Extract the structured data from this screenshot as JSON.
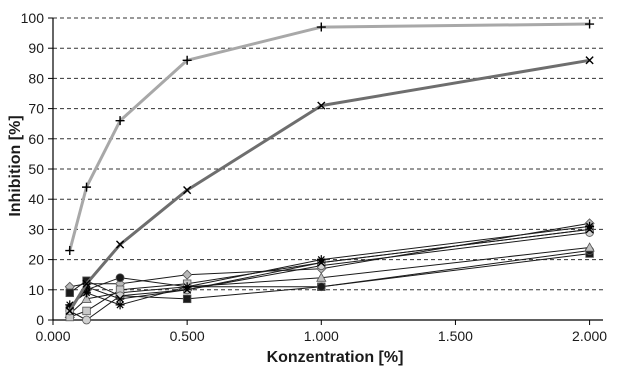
{
  "chart_data": {
    "type": "line",
    "title": "",
    "xlabel": "Konzentration [%]",
    "ylabel": "Inhibition [%]",
    "xlim": [
      0,
      2.05
    ],
    "ylim": [
      0,
      100
    ],
    "x_ticks": [
      0,
      0.5,
      1,
      1.5,
      2
    ],
    "x_tick_labels": [
      "0.000",
      "0.500",
      "1.000",
      "1.500",
      "2.000"
    ],
    "y_ticks": [
      0,
      10,
      20,
      30,
      40,
      50,
      60,
      70,
      80,
      90,
      100
    ],
    "y_tick_labels": [
      "0",
      "10",
      "20",
      "30",
      "40",
      "50",
      "60",
      "70",
      "80",
      "90",
      "100"
    ],
    "grid": "horizontal dashed",
    "legend": "none",
    "x": [
      0.0625,
      0.125,
      0.25,
      0.5,
      1.0,
      2.0
    ],
    "series": [
      {
        "values": [
          23,
          44,
          66,
          86,
          97,
          98
        ],
        "color": "#a8a8a8",
        "marker": "plus",
        "width": 3
      },
      {
        "values": [
          3,
          12,
          25,
          43,
          71,
          86
        ],
        "color": "#6e6e6e",
        "marker": "x",
        "width": 3
      },
      {
        "values": [
          11,
          12,
          12,
          15,
          17,
          32
        ],
        "color": "#1a1a1a",
        "marker": "diamond",
        "marker_fill": "#b8b8b8"
      },
      {
        "values": [
          9,
          13,
          8,
          7,
          11,
          22
        ],
        "color": "#1a1a1a",
        "marker": "square",
        "marker_fill": "#1a1a1a"
      },
      {
        "values": [
          4,
          10,
          14,
          11,
          11,
          23
        ],
        "color": "#1a1a1a",
        "marker": "circle",
        "marker_fill": "#1a1a1a"
      },
      {
        "values": [
          2,
          7,
          9,
          11,
          14,
          24
        ],
        "color": "#1a1a1a",
        "marker": "triangle",
        "marker_fill": "#c0c0c0"
      },
      {
        "values": [
          1,
          3,
          10,
          12,
          19,
          30
        ],
        "color": "#1a1a1a",
        "marker": "square",
        "marker_fill": "#c8c8c8"
      },
      {
        "values": [
          3,
          0,
          8,
          10,
          18,
          29
        ],
        "color": "#1a1a1a",
        "marker": "circle",
        "marker_fill": "#d0d0d0"
      },
      {
        "values": [
          5,
          9,
          5,
          11,
          20,
          31
        ],
        "color": "#1a1a1a",
        "marker": "star",
        "marker_fill": "#1a1a1a"
      },
      {
        "values": [
          3,
          11,
          7,
          10,
          19,
          30
        ],
        "color": "#1a1a1a",
        "marker": "x",
        "marker_fill": "#1a1a1a"
      }
    ]
  }
}
